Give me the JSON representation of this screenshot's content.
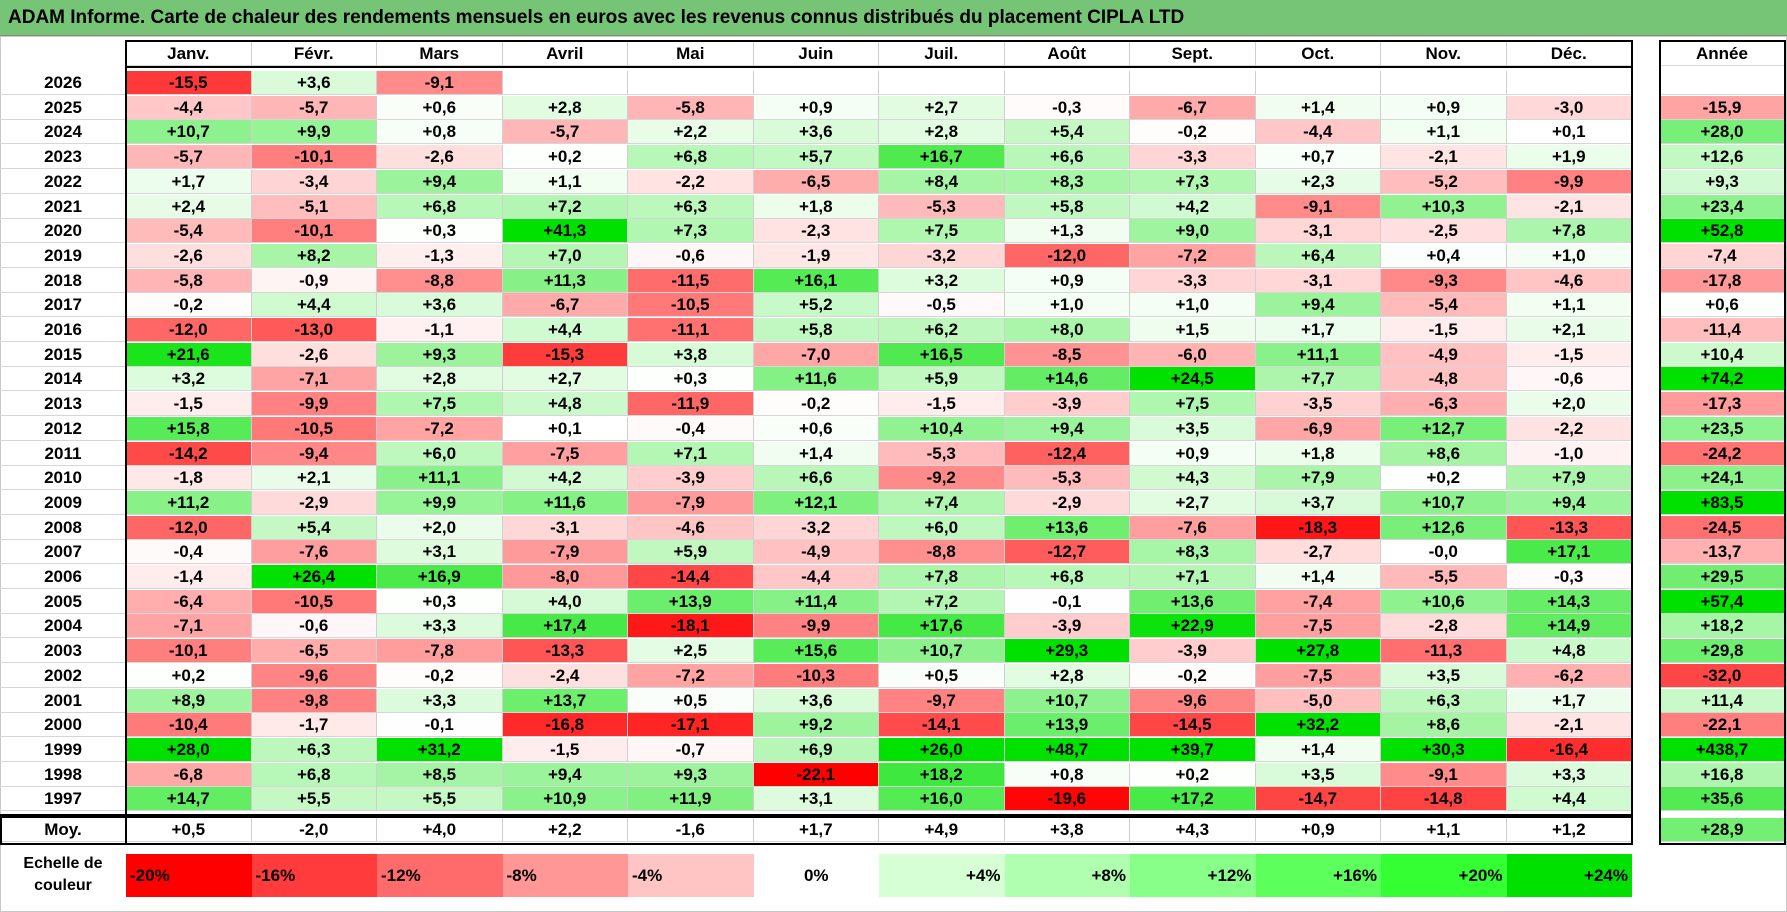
{
  "title": "ADAM Informe. Carte de chaleur des rendements mensuels en euros avec les revenus connus distribués du placement CIPLA LTD",
  "chart_data": {
    "type": "heatmap",
    "title": "ADAM Informe. Carte de chaleur des rendements mensuels en euros avec les revenus connus distribués du placement CIPLA LTD",
    "columns": [
      "Janv.",
      "Févr.",
      "Mars",
      "Avril",
      "Mai",
      "Juin",
      "Juil.",
      "Août",
      "Sept.",
      "Oct.",
      "Nov.",
      "Déc."
    ],
    "year_column": "Année",
    "rows": [
      {
        "year": "2026",
        "values": [
          "-15,5",
          "+3,6",
          "-9,1",
          "",
          "",
          "",
          "",
          "",
          "",
          "",
          "",
          ""
        ],
        "annual": ""
      },
      {
        "year": "2025",
        "values": [
          "-4,4",
          "-5,7",
          "+0,6",
          "+2,8",
          "-5,8",
          "+0,9",
          "+2,7",
          "-0,3",
          "-6,7",
          "+1,4",
          "+0,9",
          "-3,0"
        ],
        "annual": "-15,9"
      },
      {
        "year": "2024",
        "values": [
          "+10,7",
          "+9,9",
          "+0,8",
          "-5,7",
          "+2,2",
          "+3,6",
          "+2,8",
          "+5,4",
          "-0,2",
          "-4,4",
          "+1,1",
          "+0,1"
        ],
        "annual": "+28,0"
      },
      {
        "year": "2023",
        "values": [
          "-5,7",
          "-10,1",
          "-2,6",
          "+0,2",
          "+6,8",
          "+5,7",
          "+16,7",
          "+6,6",
          "-3,3",
          "+0,7",
          "-2,1",
          "+1,9"
        ],
        "annual": "+12,6"
      },
      {
        "year": "2022",
        "values": [
          "+1,7",
          "-3,4",
          "+9,4",
          "+1,1",
          "-2,2",
          "-6,5",
          "+8,4",
          "+8,3",
          "+7,3",
          "+2,3",
          "-5,2",
          "-9,9"
        ],
        "annual": "+9,3"
      },
      {
        "year": "2021",
        "values": [
          "+2,4",
          "-5,1",
          "+6,8",
          "+7,2",
          "+6,3",
          "+1,8",
          "-5,3",
          "+5,8",
          "+4,2",
          "-9,1",
          "+10,3",
          "-2,1"
        ],
        "annual": "+23,4"
      },
      {
        "year": "2020",
        "values": [
          "-5,4",
          "-10,1",
          "+0,3",
          "+41,3",
          "+7,3",
          "-2,3",
          "+7,5",
          "+1,3",
          "+9,0",
          "-3,1",
          "-2,5",
          "+7,8"
        ],
        "annual": "+52,8"
      },
      {
        "year": "2019",
        "values": [
          "-2,6",
          "+8,2",
          "-1,3",
          "+7,0",
          "-0,6",
          "-1,9",
          "-3,2",
          "-12,0",
          "-7,2",
          "+6,4",
          "+0,4",
          "+1,0"
        ],
        "annual": "-7,4"
      },
      {
        "year": "2018",
        "values": [
          "-5,8",
          "-0,9",
          "-8,8",
          "+11,3",
          "-11,5",
          "+16,1",
          "+3,2",
          "+0,9",
          "-3,3",
          "-3,1",
          "-9,3",
          "-4,6"
        ],
        "annual": "-17,8"
      },
      {
        "year": "2017",
        "values": [
          "-0,2",
          "+4,4",
          "+3,6",
          "-6,7",
          "-10,5",
          "+5,2",
          "-0,5",
          "+1,0",
          "+1,0",
          "+9,4",
          "-5,4",
          "+1,1"
        ],
        "annual": "+0,6"
      },
      {
        "year": "2016",
        "values": [
          "-12,0",
          "-13,0",
          "-1,1",
          "+4,4",
          "-11,1",
          "+5,8",
          "+6,2",
          "+8,0",
          "+1,5",
          "+1,7",
          "-1,5",
          "+2,1"
        ],
        "annual": "-11,4"
      },
      {
        "year": "2015",
        "values": [
          "+21,6",
          "-2,6",
          "+9,3",
          "-15,3",
          "+3,8",
          "-7,0",
          "+16,5",
          "-8,5",
          "-6,0",
          "+11,1",
          "-4,9",
          "-1,5"
        ],
        "annual": "+10,4"
      },
      {
        "year": "2014",
        "values": [
          "+3,2",
          "-7,1",
          "+2,8",
          "+2,7",
          "+0,3",
          "+11,6",
          "+5,9",
          "+14,6",
          "+24,5",
          "+7,7",
          "-4,8",
          "-0,6"
        ],
        "annual": "+74,2"
      },
      {
        "year": "2013",
        "values": [
          "-1,5",
          "-9,9",
          "+7,5",
          "+4,8",
          "-11,9",
          "-0,2",
          "-1,5",
          "-3,9",
          "+7,5",
          "-3,5",
          "-6,3",
          "+2,0"
        ],
        "annual": "-17,3"
      },
      {
        "year": "2012",
        "values": [
          "+15,8",
          "-10,5",
          "-7,2",
          "+0,1",
          "-0,4",
          "+0,6",
          "+10,4",
          "+9,4",
          "+3,5",
          "-6,9",
          "+12,7",
          "-2,2"
        ],
        "annual": "+23,5"
      },
      {
        "year": "2011",
        "values": [
          "-14,2",
          "-9,4",
          "+6,0",
          "-7,5",
          "+7,1",
          "+1,4",
          "-5,3",
          "-12,4",
          "+0,9",
          "+1,8",
          "+8,6",
          "-1,0"
        ],
        "annual": "-24,2"
      },
      {
        "year": "2010",
        "values": [
          "-1,8",
          "+2,1",
          "+11,1",
          "+4,2",
          "-3,9",
          "+6,6",
          "-9,2",
          "-5,3",
          "+4,3",
          "+7,9",
          "+0,2",
          "+7,9"
        ],
        "annual": "+24,1"
      },
      {
        "year": "2009",
        "values": [
          "+11,2",
          "-2,9",
          "+9,9",
          "+11,6",
          "-7,9",
          "+12,1",
          "+7,4",
          "-2,9",
          "+2,7",
          "+3,7",
          "+10,7",
          "+9,4"
        ],
        "annual": "+83,5"
      },
      {
        "year": "2008",
        "values": [
          "-12,0",
          "+5,4",
          "+2,0",
          "-3,1",
          "-4,6",
          "-3,2",
          "+6,0",
          "+13,6",
          "-7,6",
          "-18,3",
          "+12,6",
          "-13,3"
        ],
        "annual": "-24,5"
      },
      {
        "year": "2007",
        "values": [
          "-0,4",
          "-7,6",
          "+3,1",
          "-7,9",
          "+5,9",
          "-4,9",
          "-8,8",
          "-12,7",
          "+8,3",
          "-2,7",
          "-0,0",
          "+17,1"
        ],
        "annual": "-13,7"
      },
      {
        "year": "2006",
        "values": [
          "-1,4",
          "+26,4",
          "+16,9",
          "-8,0",
          "-14,4",
          "-4,4",
          "+7,8",
          "+6,8",
          "+7,1",
          "+1,4",
          "-5,5",
          "-0,3"
        ],
        "annual": "+29,5"
      },
      {
        "year": "2005",
        "values": [
          "-6,4",
          "-10,5",
          "+0,3",
          "+4,0",
          "+13,9",
          "+11,4",
          "+7,2",
          "-0,1",
          "+13,6",
          "-7,4",
          "+10,6",
          "+14,3"
        ],
        "annual": "+57,4"
      },
      {
        "year": "2004",
        "values": [
          "-7,1",
          "-0,6",
          "+3,3",
          "+17,4",
          "-18,1",
          "-9,9",
          "+17,6",
          "-3,9",
          "+22,9",
          "-7,5",
          "-2,8",
          "+14,9"
        ],
        "annual": "+18,2"
      },
      {
        "year": "2003",
        "values": [
          "-10,1",
          "-6,5",
          "-7,8",
          "-13,3",
          "+2,5",
          "+15,6",
          "+10,7",
          "+29,3",
          "-3,9",
          "+27,8",
          "-11,3",
          "+4,8"
        ],
        "annual": "+29,8"
      },
      {
        "year": "2002",
        "values": [
          "+0,2",
          "-9,6",
          "-0,2",
          "-2,4",
          "-7,2",
          "-10,3",
          "+0,5",
          "+2,8",
          "-0,2",
          "-7,5",
          "+3,5",
          "-6,2"
        ],
        "annual": "-32,0"
      },
      {
        "year": "2001",
        "values": [
          "+8,9",
          "-9,8",
          "+3,3",
          "+13,7",
          "+0,5",
          "+3,6",
          "-9,7",
          "+10,7",
          "-9,6",
          "-5,0",
          "+6,3",
          "+1,7"
        ],
        "annual": "+11,4"
      },
      {
        "year": "2000",
        "values": [
          "-10,4",
          "-1,7",
          "-0,1",
          "-16,8",
          "-17,1",
          "+9,2",
          "-14,1",
          "+13,9",
          "-14,5",
          "+32,2",
          "+8,6",
          "-2,1"
        ],
        "annual": "-22,1"
      },
      {
        "year": "1999",
        "values": [
          "+28,0",
          "+6,3",
          "+31,2",
          "-1,5",
          "-0,7",
          "+6,9",
          "+26,0",
          "+48,7",
          "+39,7",
          "+1,4",
          "+30,3",
          "-16,4"
        ],
        "annual": "+438,7"
      },
      {
        "year": "1998",
        "values": [
          "-6,8",
          "+6,8",
          "+8,5",
          "+9,4",
          "+9,3",
          "-22,1",
          "+18,2",
          "+0,8",
          "+0,2",
          "+3,5",
          "-9,1",
          "+3,3"
        ],
        "annual": "+16,8"
      },
      {
        "year": "1997",
        "values": [
          "+14,7",
          "+5,5",
          "+5,5",
          "+10,9",
          "+11,9",
          "+3,1",
          "+16,0",
          "-19,6",
          "+17,2",
          "-14,7",
          "-14,8",
          "+4,4"
        ],
        "annual": "+35,6"
      }
    ],
    "average": {
      "label": "Moy.",
      "values": [
        "+0,5",
        "-2,0",
        "+4,0",
        "+2,2",
        "-1,6",
        "+1,7",
        "+4,9",
        "+3,8",
        "+4,3",
        "+0,9",
        "+1,1",
        "+1,2"
      ],
      "annual": "+28,9"
    },
    "scale": {
      "label_line1": "Echelle de",
      "label_line2": "couleur",
      "steps": [
        "-20%",
        "-16%",
        "-12%",
        "-8%",
        "-4%",
        "0%",
        "+4%",
        "+8%",
        "+12%",
        "+16%",
        "+20%",
        "+24%"
      ],
      "colors": [
        "#ff0000",
        "#ff3b3b",
        "#ff6b6b",
        "#ff9797",
        "#ffc4c4",
        "#ffffff",
        "#d6ffd6",
        "#b0ffb0",
        "#88ff88",
        "#5cff5c",
        "#33ff33",
        "#00e100"
      ]
    },
    "colors": {
      "title_bg": "#76c476",
      "negative_max": "#ff0000",
      "positive_max": "#00e100",
      "neutral": "#ffffff"
    }
  }
}
